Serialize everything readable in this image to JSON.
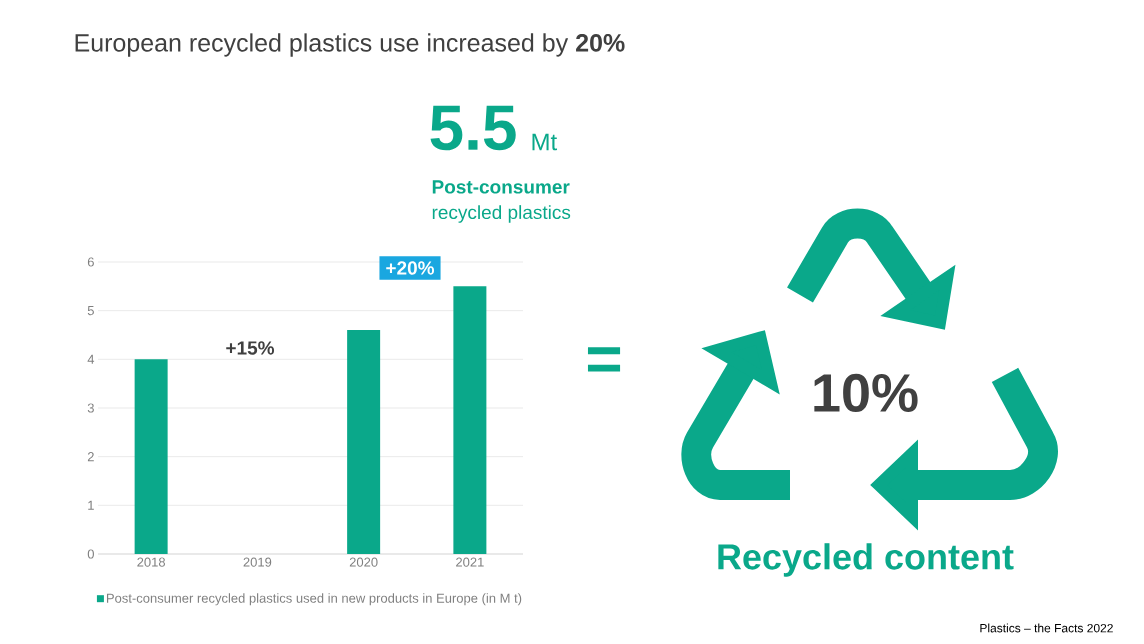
{
  "chart_data": {
    "type": "bar",
    "title": "European recycled plastics use increased by **20%**",
    "categories": [
      "2018",
      "2019",
      "2020",
      "2021"
    ],
    "series": [
      {
        "name": "Post-consumer recycled plastics used in new products in Europe (in M t)",
        "color": "#0aa88a",
        "values": [
          4.0,
          null,
          4.6,
          5.5
        ]
      }
    ],
    "ylim": [
      0,
      6
    ],
    "yticks": [
      0,
      1,
      2,
      3,
      4,
      5,
      6
    ],
    "grid": "y",
    "legend": "bottom",
    "annotations": [
      "+15%",
      "+20%",
      "5.5",
      "Mt",
      "Post-consumer",
      "recycled plastics",
      "=",
      "10%",
      "Recycled content",
      "Plastics – the Facts 2022"
    ]
  }
}
